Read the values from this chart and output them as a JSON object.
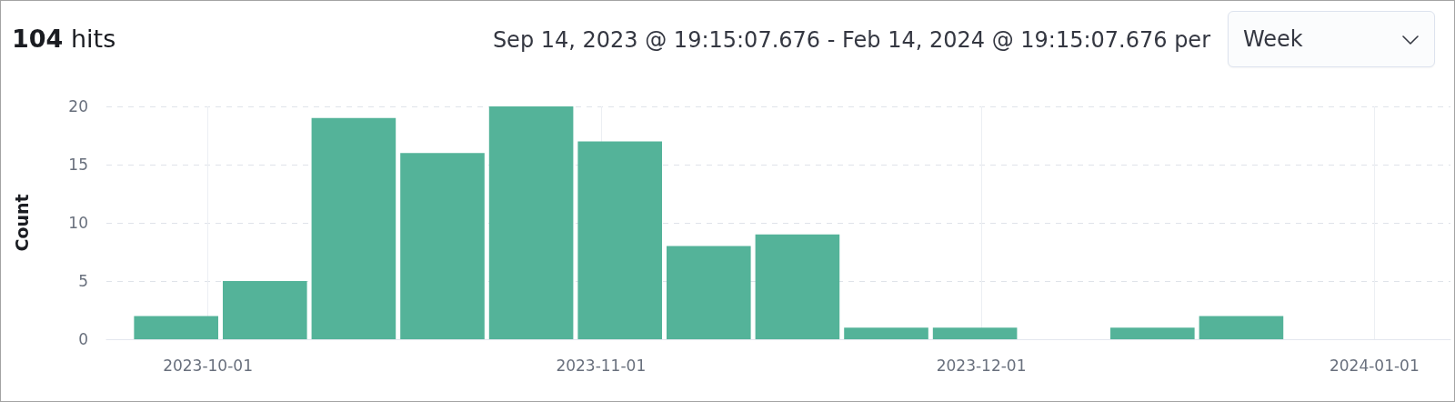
{
  "chart_data": {
    "type": "histogram",
    "title": "104 hits",
    "subtitle": "Sep 14, 2023 @ 19:15:07.676 - Feb 14, 2024 @ 19:15:07.676 per",
    "annotations": [
      "Week"
    ],
    "ylabel": "Count",
    "bins": [
      "2023-09-25",
      "2023-10-02",
      "2023-10-09",
      "2023-10-16",
      "2023-10-23",
      "2023-10-30",
      "2023-11-06",
      "2023-11-13",
      "2023-11-20",
      "2023-11-27",
      "2023-12-04",
      "2023-12-11",
      "2023-12-18",
      "2023-12-25"
    ],
    "values": [
      2,
      5,
      19,
      16,
      20,
      17,
      8,
      9,
      1,
      1,
      0,
      1,
      2
    ],
    "color": "#54b399",
    "xlim": [
      "2023-09-23",
      "2024-01-07"
    ],
    "xticks": [
      "2023-10-01",
      "2023-11-01",
      "2023-12-01",
      "2024-01-01"
    ],
    "ylim": [
      0,
      20
    ],
    "yticks": [
      0,
      5,
      10,
      15,
      20
    ],
    "grid": true
  }
}
